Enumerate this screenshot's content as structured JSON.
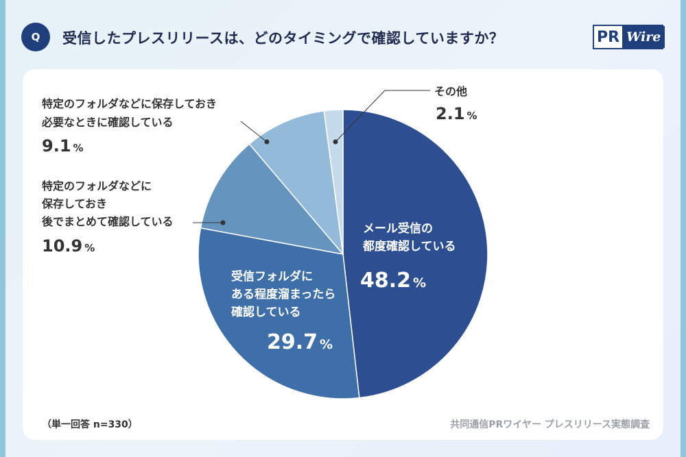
{
  "header": {
    "badge": "Q",
    "question": "受信したプレスリリースは、どのタイミングで確認していますか？",
    "logo_pr": "PR",
    "logo_wire": "Wire"
  },
  "chart_data": {
    "type": "pie",
    "title": "受信したプレスリリースは、どのタイミングで確認していますか？",
    "unit": "%",
    "slices": [
      {
        "label_lines": [
          "メール受信の",
          "都度確認している"
        ],
        "value": 48.2,
        "display": "48.2",
        "color": "#2d4f91",
        "label_inside": true
      },
      {
        "label_lines": [
          "受信フォルダに",
          "ある程度溜まったら",
          "確認している"
        ],
        "value": 29.7,
        "display": "29.7",
        "color": "#3f6fa8",
        "label_inside": true
      },
      {
        "label_lines": [
          "特定のフォルダなどに",
          "保存しておき",
          "後でまとめて確認している"
        ],
        "value": 10.9,
        "display": "10.9",
        "color": "#6595bf",
        "label_inside": false
      },
      {
        "label_lines": [
          "特定のフォルダなどに保存しておき",
          "必要なときに確認している"
        ],
        "value": 9.1,
        "display": "9.1",
        "color": "#93bad8",
        "label_inside": false
      },
      {
        "label_lines": [
          "その他"
        ],
        "value": 2.1,
        "display": "2.1",
        "color": "#c5dbec",
        "label_inside": false
      }
    ]
  },
  "footer": {
    "note": "（単一回答 n=330）",
    "source": "共同通信PRワイヤー プレスリリース実態調査"
  }
}
